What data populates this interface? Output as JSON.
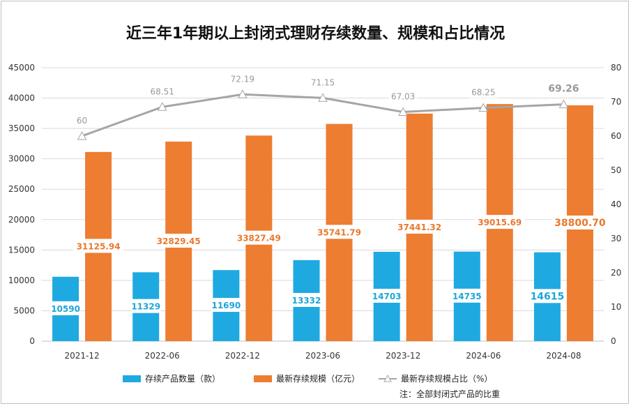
{
  "title": "近三年1年期以上封闭式理财存续数量、规模和占比情况",
  "note": "注：全部封闭式产品的比重",
  "legend": {
    "count": "存续产品数量（款）",
    "scale": "最新存续规模（亿元）",
    "share": "最新存续规模占比（%）"
  },
  "colors": {
    "count": "#1fa9e1",
    "scale": "#ed7d31",
    "share": "#a5a5a5"
  },
  "chart_data": {
    "type": "bar",
    "categories": [
      "2021-12",
      "2022-06",
      "2022-12",
      "2023-06",
      "2023-12",
      "2024-06",
      "2024-08"
    ],
    "series": [
      {
        "name": "存续产品数量（款）",
        "axis": "left",
        "type": "bar",
        "values": [
          10590,
          11329,
          11690,
          13332,
          14703,
          14735,
          14615
        ],
        "labels": [
          "10590",
          "11329",
          "11690",
          "13332",
          "14703",
          "14735",
          "14615"
        ]
      },
      {
        "name": "最新存续规模（亿元）",
        "axis": "left",
        "type": "bar",
        "values": [
          31125.94,
          32829.45,
          33827.49,
          35741.79,
          37441.32,
          39015.69,
          38800.7
        ],
        "labels": [
          "31125.94",
          "32829.45",
          "33827.49",
          "35741.79",
          "37441.32",
          "39015.69",
          "38800.70"
        ]
      },
      {
        "name": "最新存续规模占比（%）",
        "axis": "right",
        "type": "line",
        "values": [
          60,
          68.51,
          72.19,
          71.15,
          67.03,
          68.25,
          69.26
        ],
        "labels": [
          "60",
          "68.51",
          "72.19",
          "71.15",
          "67.03",
          "68.25",
          "69.26"
        ]
      }
    ],
    "y_left": {
      "min": 0,
      "max": 45000,
      "ticks": [
        "0",
        "5000",
        "10000",
        "15000",
        "20000",
        "25000",
        "30000",
        "35000",
        "40000",
        "45000"
      ]
    },
    "y_right": {
      "min": 0,
      "max": 80,
      "ticks": [
        "0",
        "10",
        "20",
        "30",
        "40",
        "50",
        "60",
        "70",
        "80"
      ]
    },
    "grid": true,
    "legend_position": "bottom"
  }
}
